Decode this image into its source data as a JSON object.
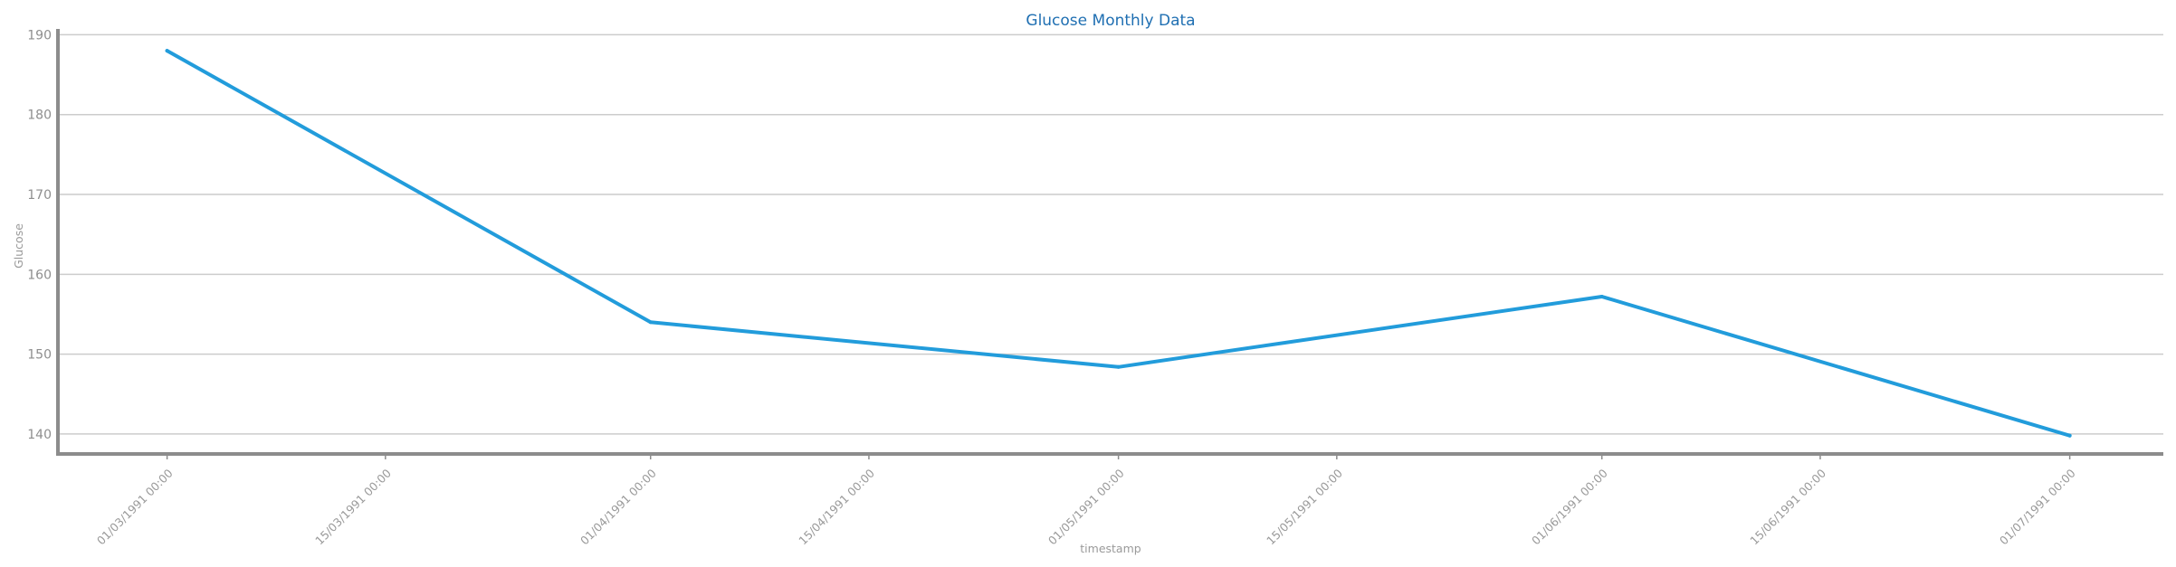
{
  "chart_data": {
    "type": "line",
    "title": "Glucose Monthly Data",
    "xlabel": "timestamp",
    "ylabel": "Glucose",
    "x_ticks": [
      "01/03/1991 00:00",
      "15/03/1991 00:00",
      "01/04/1991 00:00",
      "15/04/1991 00:00",
      "01/05/1991 00:00",
      "15/05/1991 00:00",
      "01/06/1991 00:00",
      "15/06/1991 00:00",
      "01/07/1991 00:00"
    ],
    "y_ticks": [
      140,
      150,
      160,
      170,
      180,
      190
    ],
    "ylim": [
      137.5,
      190.5
    ],
    "xlim": [
      "22/02/1991 00:00",
      "07/07/1991 00:00"
    ],
    "grid": "horizontal",
    "series": [
      {
        "x": [
          "01/03/1991 00:00",
          "01/04/1991 00:00",
          "01/05/1991 00:00",
          "01/06/1991 00:00",
          "01/07/1991 00:00"
        ],
        "values": [
          188,
          154,
          148.4,
          157.2,
          139.8
        ],
        "color": "#229cdb"
      }
    ]
  },
  "colors": {
    "line": "#229cdb",
    "title": "#1f6fb2",
    "grid": "#cccccc",
    "axis": "#8c8c8c",
    "tick_text": "#8e8e8e"
  }
}
